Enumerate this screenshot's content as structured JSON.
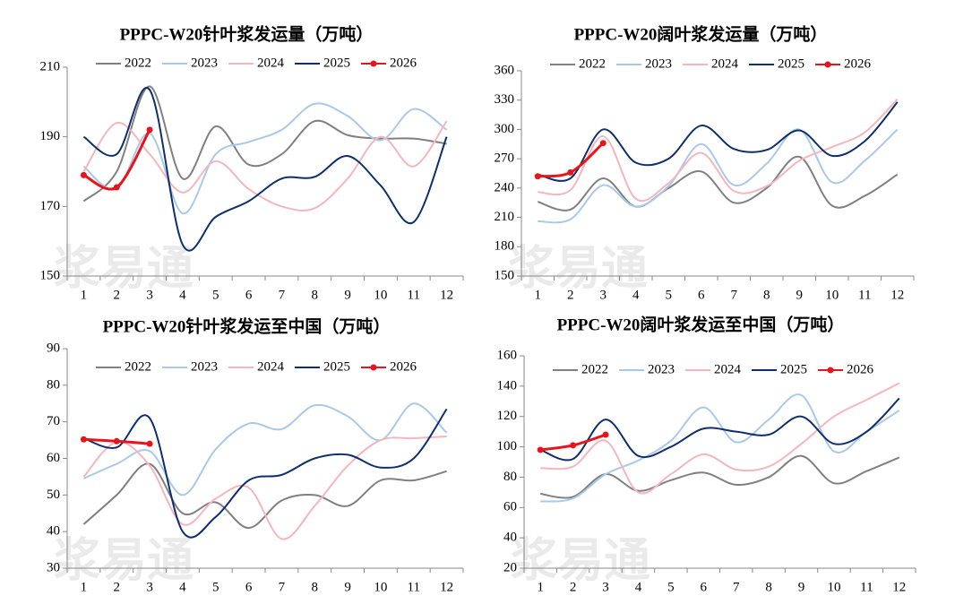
{
  "chart_data": [
    {
      "type": "line",
      "title": "PPPC-W20针叶浆发运量（万吨）",
      "watermark": "浆易通",
      "categories": [
        "1",
        "2",
        "3",
        "4",
        "5",
        "6",
        "7",
        "8",
        "9",
        "10",
        "11",
        "12"
      ],
      "ylim": [
        150,
        210
      ],
      "yticks": [
        150,
        170,
        190,
        210
      ],
      "series": [
        {
          "name": "2022",
          "color": "#808080",
          "values": [
            171.5,
            180,
            204.5,
            178,
            193,
            182,
            185,
            194.5,
            190.5,
            189.5,
            189.5,
            188
          ]
        },
        {
          "name": "2023",
          "color": "#a9c8ea",
          "values": [
            181.5,
            175,
            191,
            168,
            185,
            188.5,
            192,
            199.5,
            196,
            189,
            198,
            192
          ]
        },
        {
          "name": "2024",
          "color": "#f4b6bc",
          "values": [
            180,
            194,
            185,
            174,
            183,
            175,
            170,
            169.5,
            178,
            190,
            181.5,
            194.5
          ]
        },
        {
          "name": "2025",
          "color": "#0e2f6e",
          "values": [
            190,
            185,
            203.5,
            159,
            167,
            171.5,
            178,
            178.5,
            184.5,
            176,
            165.5,
            190
          ]
        },
        {
          "name": "2026",
          "color": "#e8141b",
          "markers": true,
          "values": [
            179,
            175.5,
            192,
            null,
            null,
            null,
            null,
            null,
            null,
            null,
            null,
            null
          ]
        }
      ]
    },
    {
      "type": "line",
      "title": "PPPC-W20阔叶浆发运量（万吨）",
      "watermark": "浆易通",
      "categories": [
        "1",
        "2",
        "3",
        "4",
        "5",
        "6",
        "7",
        "8",
        "9",
        "10",
        "11",
        "12"
      ],
      "ylim": [
        150,
        360
      ],
      "yticks": [
        150,
        180,
        210,
        240,
        270,
        300,
        330,
        360
      ],
      "series": [
        {
          "name": "2022",
          "color": "#808080",
          "values": [
            226,
            218,
            250,
            221,
            240,
            257,
            225,
            240,
            272,
            222,
            232,
            254
          ]
        },
        {
          "name": "2023",
          "color": "#a9c8ea",
          "values": [
            206,
            208,
            243,
            221,
            242,
            285,
            243,
            265,
            300,
            246,
            268,
            300
          ]
        },
        {
          "name": "2024",
          "color": "#f4b6bc",
          "values": [
            236,
            238,
            293,
            229,
            245,
            276,
            237,
            242,
            268,
            282,
            297,
            331
          ]
        },
        {
          "name": "2025",
          "color": "#0e2f6e",
          "values": [
            254,
            250,
            300,
            266,
            270,
            304,
            280,
            279,
            299,
            273,
            288,
            328
          ]
        },
        {
          "name": "2026",
          "color": "#e8141b",
          "markers": true,
          "values": [
            252,
            256,
            286,
            null,
            null,
            null,
            null,
            null,
            null,
            null,
            null,
            null
          ]
        }
      ]
    },
    {
      "type": "line",
      "title": "PPPC-W20针叶浆发运至中国（万吨）",
      "watermark": "浆易通",
      "categories": [
        "1",
        "2",
        "3",
        "4",
        "5",
        "6",
        "7",
        "8",
        "9",
        "10",
        "11",
        "12"
      ],
      "ylim": [
        30,
        90
      ],
      "yticks": [
        30,
        40,
        50,
        60,
        70,
        80,
        90
      ],
      "series": [
        {
          "name": "2022",
          "color": "#808080",
          "values": [
            42,
            50,
            58.5,
            45,
            48,
            41,
            48.5,
            50,
            47,
            54,
            54,
            56.5
          ]
        },
        {
          "name": "2023",
          "color": "#a9c8ea",
          "values": [
            54.5,
            58.5,
            62,
            50,
            62.5,
            69.5,
            68,
            74.5,
            71.5,
            65,
            75,
            67
          ]
        },
        {
          "name": "2024",
          "color": "#f4b6bc",
          "values": [
            55,
            64.5,
            58,
            42,
            49,
            52,
            38,
            47,
            58,
            65,
            65.5,
            66
          ]
        },
        {
          "name": "2025",
          "color": "#0e2f6e",
          "values": [
            65.5,
            63,
            71,
            40,
            44,
            54,
            55.5,
            60,
            61,
            57.5,
            60,
            73.5
          ]
        },
        {
          "name": "2026",
          "color": "#e8141b",
          "markers": true,
          "values": [
            65.2,
            64.7,
            64,
            null,
            null,
            null,
            null,
            null,
            null,
            null,
            null,
            null
          ]
        }
      ]
    },
    {
      "type": "line",
      "title": "PPPC-W20阔叶浆发运至中国（万吨）",
      "watermark": "浆易通",
      "categories": [
        "1",
        "2",
        "3",
        "4",
        "5",
        "6",
        "7",
        "8",
        "9",
        "10",
        "11",
        "12"
      ],
      "ylim": [
        20,
        160
      ],
      "yticks": [
        20,
        40,
        60,
        80,
        100,
        120,
        140,
        160
      ],
      "series": [
        {
          "name": "2022",
          "color": "#808080",
          "values": [
            69,
            67,
            82,
            71,
            78,
            83,
            75,
            80,
            94,
            76,
            84,
            93
          ]
        },
        {
          "name": "2023",
          "color": "#a9c8ea",
          "values": [
            64,
            66,
            82,
            91,
            104,
            126,
            103,
            118,
            134,
            97,
            110,
            124
          ]
        },
        {
          "name": "2024",
          "color": "#f4b6bc",
          "values": [
            86,
            87,
            104,
            70,
            82,
            95,
            85,
            87,
            102,
            120,
            131,
            142
          ]
        },
        {
          "name": "2025",
          "color": "#0e2f6e",
          "values": [
            98,
            92,
            118,
            94,
            100,
            112,
            110,
            108,
            120,
            102,
            110,
            132
          ]
        },
        {
          "name": "2026",
          "color": "#e8141b",
          "markers": true,
          "values": [
            98,
            101,
            108,
            null,
            null,
            null,
            null,
            null,
            null,
            null,
            null,
            null
          ]
        }
      ]
    }
  ]
}
